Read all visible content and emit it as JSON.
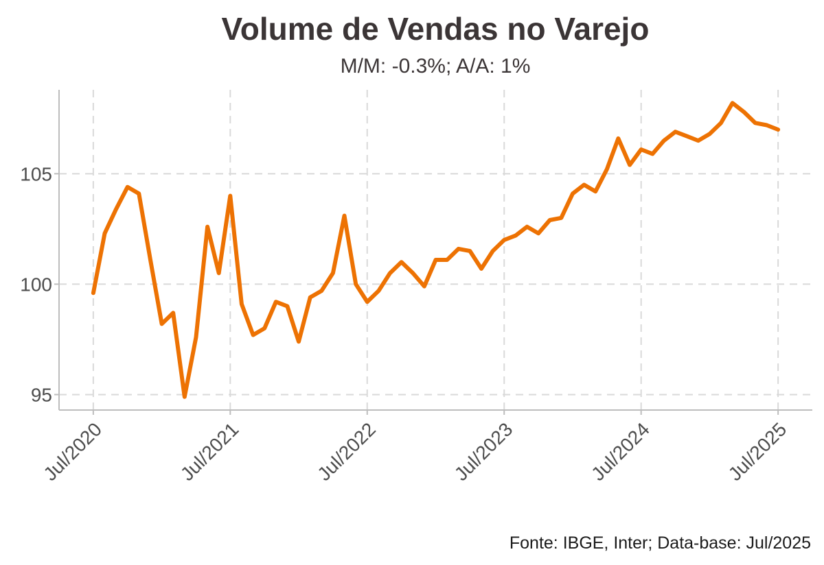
{
  "chart_data": {
    "type": "line",
    "title": "Volume de Vendas no Varejo",
    "subtitle": "M/M: -0.3%; A/A: 1%",
    "caption": "Fonte: IBGE, Inter; Data-base: Jul/2025",
    "xlabel": "",
    "ylabel": "",
    "x_ticks": [
      "Jul/2020",
      "Jul/2021",
      "Jul/2022",
      "Jul/2023",
      "Jul/2024",
      "Jul/2025"
    ],
    "y_ticks": [
      95,
      100,
      105
    ],
    "ylim": [
      94.3,
      108.8
    ],
    "xlim": [
      "Apr/2020",
      "Oct/2025"
    ],
    "grid": true,
    "line_color": "#ED7203",
    "series": [
      {
        "x": [
          "Jul/2020",
          "Aug/2020",
          "Sep/2020",
          "Oct/2020",
          "Nov/2020",
          "Dec/2020",
          "Jan/2021",
          "Feb/2021",
          "Mar/2021",
          "Apr/2021",
          "May/2021",
          "Jun/2021",
          "Jul/2021",
          "Aug/2021",
          "Sep/2021",
          "Oct/2021",
          "Nov/2021",
          "Dec/2021",
          "Jan/2022",
          "Feb/2022",
          "Mar/2022",
          "Apr/2022",
          "May/2022",
          "Jun/2022",
          "Jul/2022",
          "Aug/2022",
          "Sep/2022",
          "Oct/2022",
          "Nov/2022",
          "Dec/2022",
          "Jan/2023",
          "Feb/2023",
          "Mar/2023",
          "Apr/2023",
          "May/2023",
          "Jun/2023",
          "Jul/2023",
          "Aug/2023",
          "Sep/2023",
          "Oct/2023",
          "Nov/2023",
          "Dec/2023",
          "Jan/2024",
          "Feb/2024",
          "Mar/2024",
          "Apr/2024",
          "May/2024",
          "Jun/2024",
          "Jul/2024",
          "Aug/2024",
          "Sep/2024",
          "Oct/2024",
          "Nov/2024",
          "Dec/2024",
          "Jan/2025",
          "Feb/2025",
          "Mar/2025",
          "Apr/2025",
          "May/2025",
          "Jun/2025",
          "Jul/2025"
        ],
        "values": [
          99.6,
          102.3,
          103.4,
          104.4,
          104.1,
          101.1,
          98.2,
          98.7,
          94.9,
          97.6,
          102.6,
          100.5,
          104.0,
          99.1,
          97.7,
          98.0,
          99.2,
          99.0,
          97.4,
          99.4,
          99.7,
          100.5,
          103.1,
          100.0,
          99.2,
          99.7,
          100.5,
          101.0,
          100.5,
          99.9,
          101.1,
          101.1,
          101.6,
          101.5,
          100.7,
          101.5,
          102.0,
          102.2,
          102.6,
          102.3,
          102.9,
          103.0,
          104.1,
          104.5,
          104.2,
          105.2,
          106.6,
          105.4,
          106.1,
          105.9,
          106.5,
          106.9,
          106.7,
          106.5,
          106.8,
          107.3,
          108.2,
          107.8,
          107.3,
          107.2,
          107.0
        ]
      }
    ]
  }
}
